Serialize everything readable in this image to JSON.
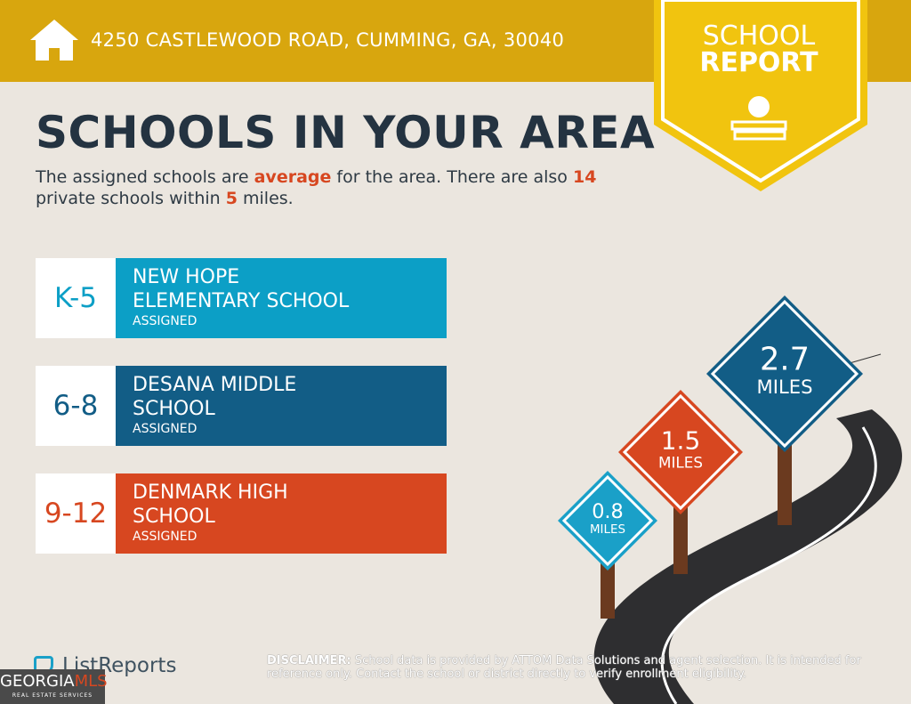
{
  "header": {
    "address": "4250 CASTLEWOOD ROAD, CUMMING, GA, 30040",
    "badge": [
      "SCHOOL",
      "REPORT"
    ]
  },
  "title": "SCHOOLS IN YOUR AREA",
  "summary": [
    {
      "text": "The assigned schools are "
    },
    {
      "text": "average",
      "highlight": true
    },
    {
      "text": " for the area. There are also "
    },
    {
      "text": "14",
      "highlight": true
    },
    {
      "text": " private schools within "
    },
    {
      "text": "5",
      "highlight": true
    },
    {
      "text": " miles."
    }
  ],
  "schools": [
    {
      "grades": "K-5",
      "name": [
        "NEW HOPE",
        "ELEMENTARY SCHOOL"
      ],
      "status": "ASSIGNED",
      "color": "#0c9fc6"
    },
    {
      "grades": "6-8",
      "name": [
        "DESANA MIDDLE",
        "SCHOOL"
      ],
      "status": "ASSIGNED",
      "color": "#125d86"
    },
    {
      "grades": "9-12",
      "name": [
        "DENMARK HIGH",
        "SCHOOL"
      ],
      "status": "ASSIGNED",
      "color": "#d74720"
    }
  ],
  "distances": [
    {
      "value": "0.8",
      "unit": "MILES",
      "color": "#1aa0c8"
    },
    {
      "value": "1.5",
      "unit": "MILES",
      "color": "#d74720"
    },
    {
      "value": "2.7",
      "unit": "MILES",
      "color": "#125d86"
    }
  ],
  "footer": {
    "brand": "ListReports",
    "disclaimer_label": "DISCLAIMER:",
    "disclaimer": "School data is provided by ATTOM Data Solutions and agent selection. It is intended for reference only. Contact the school or district directly to verify enrollment eligibility.",
    "mls": "GEORGIA",
    "mls_accent": "MLS",
    "mls_sub": "REAL ESTATE SERVICES"
  }
}
